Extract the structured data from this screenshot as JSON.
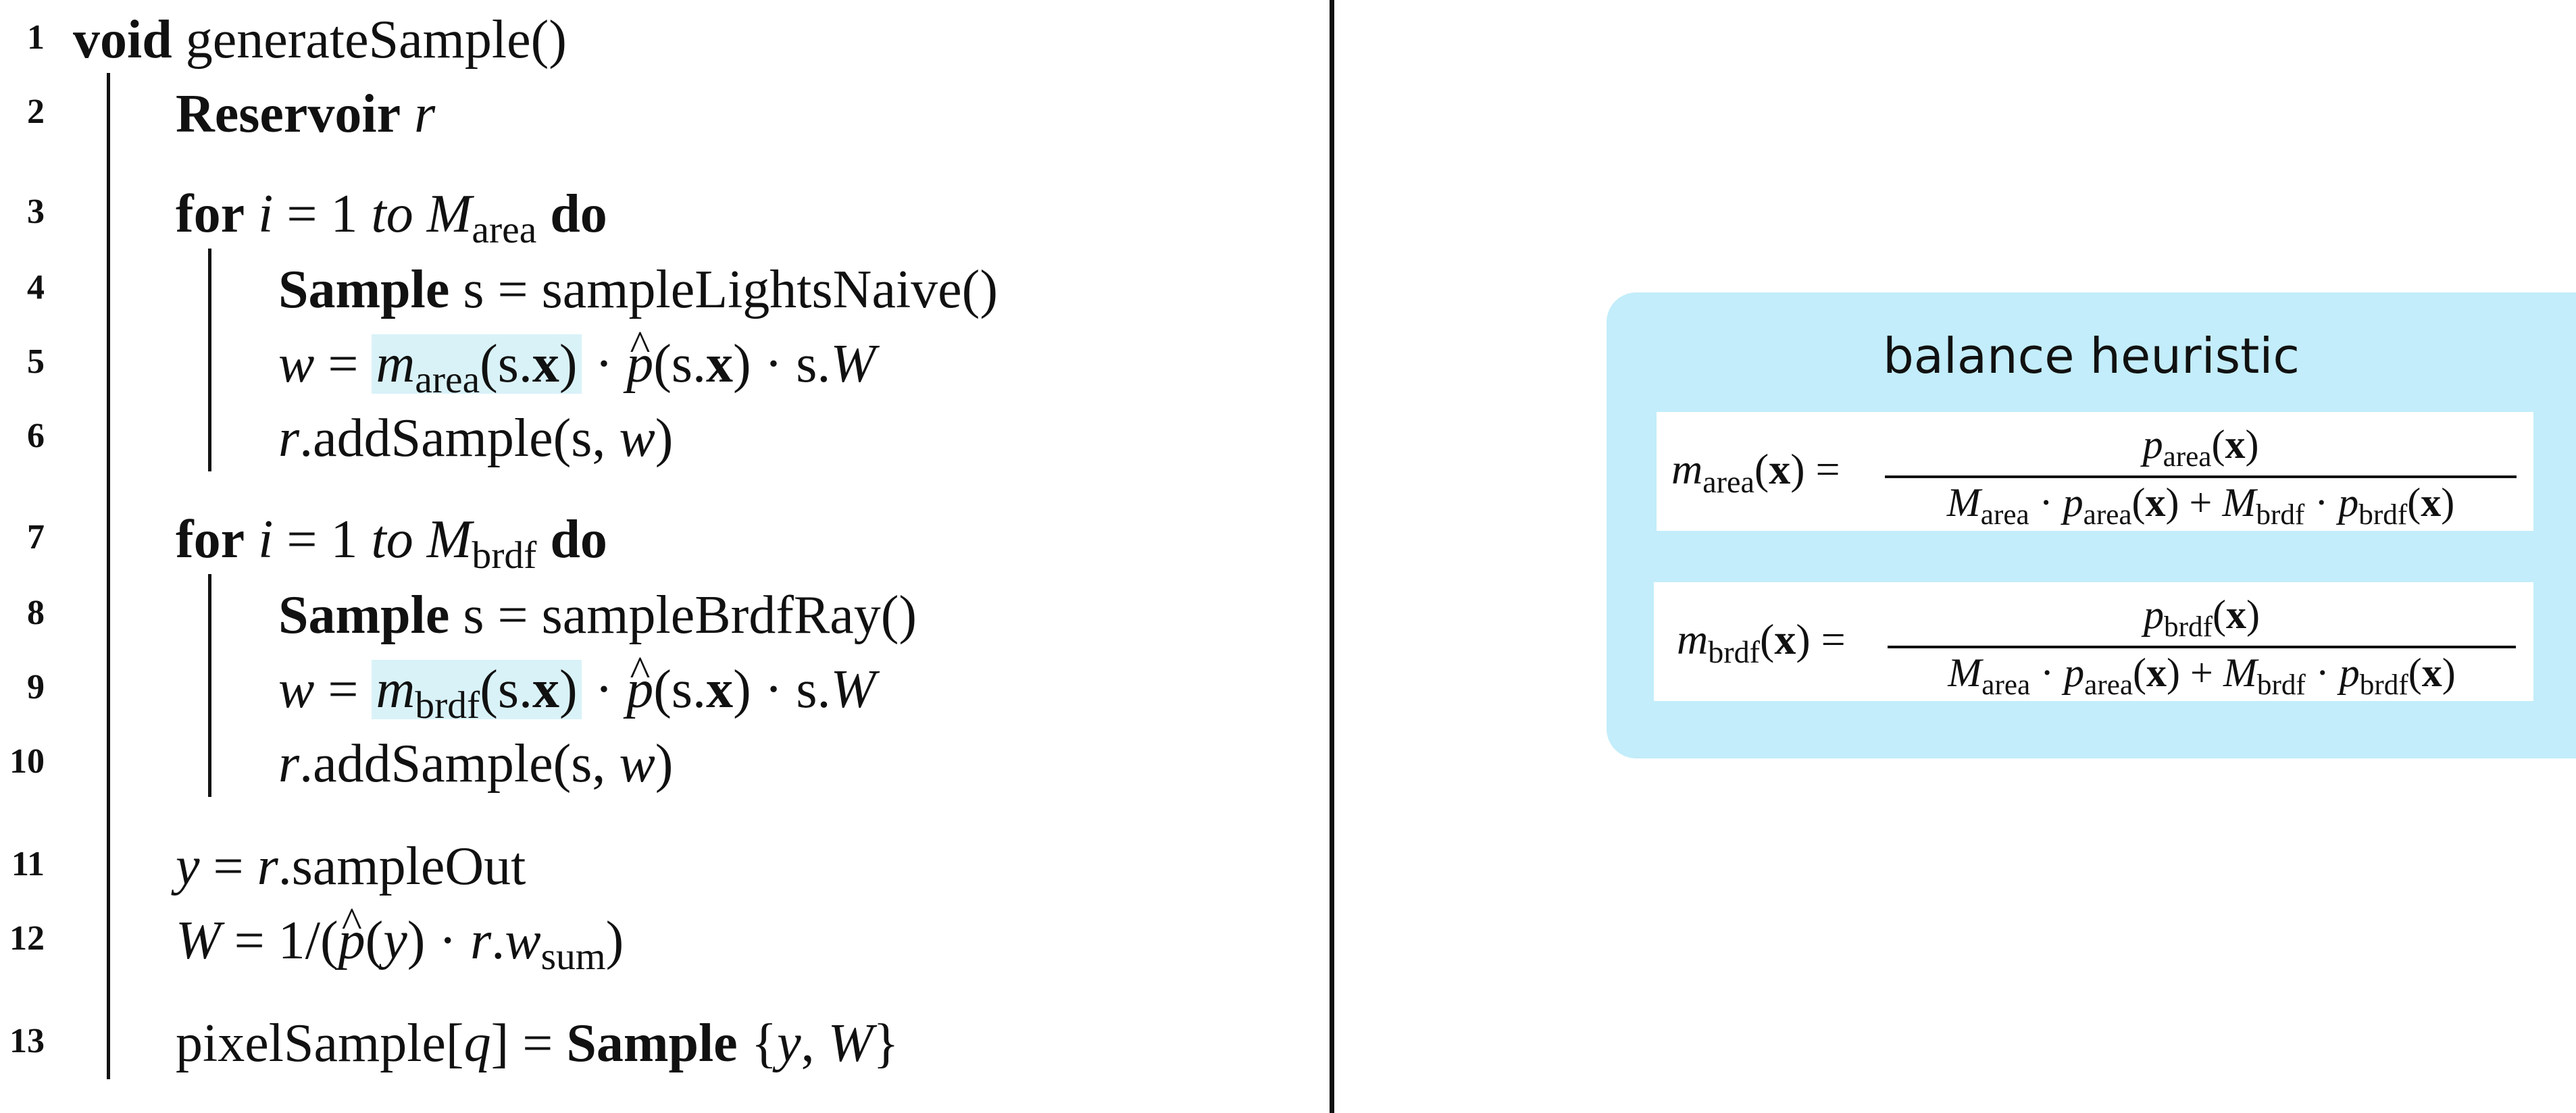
{
  "listing": {
    "lines": [
      {
        "n": "1"
      },
      {
        "n": "2"
      },
      {
        "n": "3"
      },
      {
        "n": "4"
      },
      {
        "n": "5"
      },
      {
        "n": "6"
      },
      {
        "n": "7"
      },
      {
        "n": "8"
      },
      {
        "n": "9"
      },
      {
        "n": "10"
      },
      {
        "n": "11"
      },
      {
        "n": "12"
      },
      {
        "n": "13"
      }
    ],
    "kw_void": "void",
    "fn_name": "generateSample()",
    "kw_reservoir": "Reservoir",
    "var_r": "r",
    "kw_for": "for",
    "kw_to": "to",
    "kw_do": "do",
    "kw_sample": "Sample",
    "sub_area": "area",
    "sub_brdf": "brdf",
    "sub_sum": "sum",
    "call_lights": "sampleLightsNaive()",
    "call_brdf": "sampleBrdfRay()",
    "add_sample": "addSample",
    "sample_out": "sampleOut",
    "pixel_sample": "pixelSample"
  },
  "panel": {
    "title": "balance heuristic"
  },
  "colors": {
    "panel_bg": "#c3edfa",
    "highlight": "#d9f2f8"
  }
}
